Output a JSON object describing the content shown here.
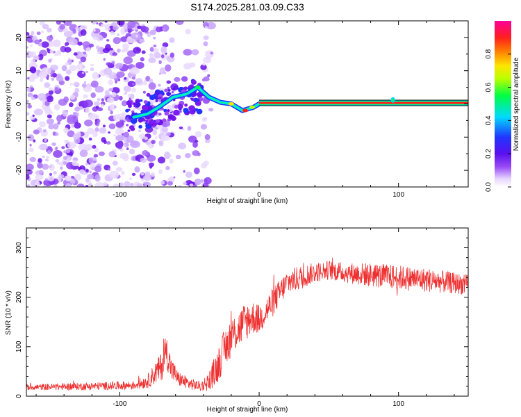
{
  "chart_data": [
    {
      "type": "heatmap",
      "title": "S174.2025.281.03.09.C33",
      "xlabel": "Height of straight line (km)",
      "ylabel": "Frequency (Hz)",
      "xlim": [
        -167,
        150
      ],
      "ylim": [
        -25,
        25
      ],
      "xticks": [
        -100,
        0,
        100
      ],
      "yticks": [
        -20,
        -10,
        0,
        10,
        20
      ],
      "colorbar": {
        "label": "Normalized spectral amplitude",
        "range": [
          0,
          1
        ],
        "ticks": [
          "0.0",
          "0.2",
          "0.4",
          "0.6",
          "0.8"
        ],
        "colors": [
          "#ffffff",
          "#e6d4ff",
          "#7a1cf0",
          "#2036ff",
          "#00d9ff",
          "#00ff44",
          "#b8ff00",
          "#ffe500",
          "#ff7a00",
          "#ff1f1f",
          "#ff0099"
        ]
      },
      "features": [
        {
          "name": "noise field",
          "x_range": [
            -167,
            -34
          ],
          "freq_range": [
            -25,
            25
          ],
          "amplitude": 0.15
        },
        {
          "name": "wandering track",
          "x": [
            -90,
            -80,
            -72,
            -62,
            -52,
            -44,
            -36,
            -28,
            -20,
            -12,
            -4,
            0
          ],
          "freq": [
            -4,
            -3,
            -1,
            2,
            3,
            5,
            2,
            0.5,
            0,
            -2,
            -1,
            0
          ]
        },
        {
          "name": "steady line",
          "x_range": [
            0,
            150
          ],
          "freq": 0.3,
          "amplitude": 0.95
        }
      ]
    },
    {
      "type": "line",
      "xlabel": "Height of straight line (km)",
      "ylabel": "SNR (10 * v/v)",
      "xlim": [
        -167,
        150
      ],
      "ylim": [
        0,
        340
      ],
      "xticks": [
        -100,
        0,
        100
      ],
      "yticks": [
        0,
        100,
        200,
        300
      ],
      "series": [
        {
          "name": "SNR",
          "color": "#ee3030",
          "x": [
            -167,
            -120,
            -90,
            -80,
            -75,
            -70,
            -67,
            -63,
            -58,
            -50,
            -42,
            -36,
            -30,
            -25,
            -20,
            -15,
            -10,
            -5,
            0,
            10,
            20,
            30,
            40,
            50,
            60,
            80,
            100,
            120,
            150
          ],
          "y": [
            18,
            20,
            22,
            30,
            45,
            60,
            95,
            55,
            35,
            25,
            20,
            30,
            60,
            95,
            120,
            135,
            150,
            160,
            155,
            190,
            230,
            240,
            250,
            255,
            250,
            245,
            240,
            235,
            225
          ],
          "noise": [
            6,
            8,
            9,
            14,
            22,
            30,
            35,
            25,
            15,
            12,
            10,
            20,
            35,
            40,
            40,
            40,
            40,
            35,
            30,
            30,
            25,
            25,
            20,
            20,
            20,
            25,
            25,
            25,
            20
          ]
        }
      ]
    }
  ]
}
